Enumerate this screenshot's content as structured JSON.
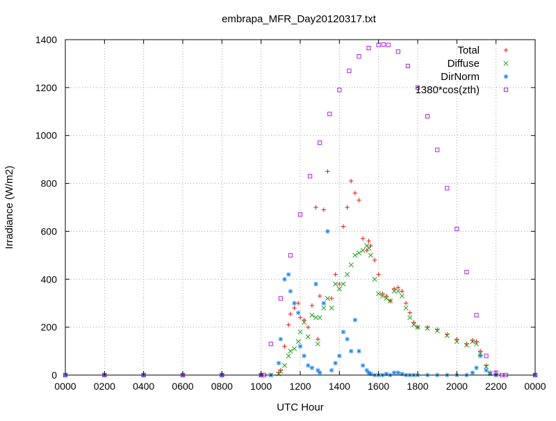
{
  "chart_data": {
    "type": "scatter",
    "title": "embrapa_MFR_Day20120317.txt",
    "xlabel": "UTC Hour",
    "ylabel": "Irradiance (W/m2)",
    "xlim": [
      0,
      24
    ],
    "ylim": [
      0,
      1400
    ],
    "grid": true,
    "legend_position": "top-right",
    "x_tick_values": [
      0,
      2,
      4,
      6,
      8,
      10,
      12,
      14,
      16,
      18,
      20,
      22,
      24
    ],
    "x_tick_labels": [
      "0000",
      "0200",
      "0400",
      "0600",
      "0800",
      "1000",
      "1200",
      "1400",
      "1600",
      "1800",
      "2000",
      "2200",
      "0000"
    ],
    "y_ticks": [
      0,
      200,
      400,
      600,
      800,
      1000,
      1200,
      1400
    ],
    "series": [
      {
        "name": "Total",
        "marker": "+",
        "color": "#e8120c",
        "x": [
          0,
          2,
          4,
          6,
          8,
          10,
          10.5,
          10.9,
          11.0,
          11.2,
          11.4,
          11.5,
          11.7,
          11.9,
          12.0,
          12.2,
          12.4,
          12.6,
          12.8,
          12.9,
          13.0,
          13.2,
          13.4,
          13.6,
          13.8,
          14.0,
          14.2,
          14.4,
          14.6,
          14.8,
          15.0,
          15.2,
          15.4,
          15.5,
          15.6,
          15.8,
          16.0,
          16.2,
          16.4,
          16.6,
          16.8,
          17.0,
          17.2,
          17.4,
          17.6,
          17.8,
          18.0,
          18.5,
          19.0,
          19.5,
          20.0,
          20.5,
          20.8,
          21.0,
          21.2,
          21.5,
          21.7,
          22.0,
          24
        ],
        "y": [
          0,
          0,
          0,
          0,
          0,
          0,
          0,
          10,
          20,
          120,
          210,
          255,
          280,
          300,
          240,
          230,
          200,
          290,
          700,
          150,
          330,
          690,
          850,
          320,
          420,
          380,
          620,
          700,
          810,
          760,
          730,
          570,
          520,
          560,
          540,
          480,
          420,
          340,
          330,
          310,
          360,
          365,
          350,
          300,
          260,
          220,
          200,
          200,
          190,
          170,
          150,
          130,
          145,
          140,
          100,
          40,
          10,
          0,
          0
        ]
      },
      {
        "name": "Diffuse",
        "marker": "x",
        "color": "#1a9f1a",
        "x": [
          0,
          2,
          4,
          6,
          8,
          10,
          10.5,
          10.9,
          11.0,
          11.2,
          11.4,
          11.5,
          11.7,
          11.9,
          12.0,
          12.2,
          12.4,
          12.6,
          12.8,
          12.9,
          13.0,
          13.2,
          13.4,
          13.6,
          13.8,
          14.0,
          14.2,
          14.4,
          14.6,
          14.8,
          15.0,
          15.2,
          15.4,
          15.5,
          15.6,
          15.8,
          16.0,
          16.2,
          16.4,
          16.6,
          16.8,
          17.0,
          17.2,
          17.4,
          17.6,
          17.8,
          18.0,
          18.5,
          19.0,
          19.5,
          20.0,
          20.5,
          20.8,
          21.0,
          21.2,
          21.5,
          21.7,
          22.0,
          24
        ],
        "y": [
          0,
          0,
          0,
          0,
          0,
          0,
          0,
          5,
          15,
          40,
          80,
          100,
          110,
          140,
          180,
          220,
          160,
          250,
          240,
          130,
          240,
          280,
          320,
          280,
          380,
          360,
          380,
          420,
          460,
          500,
          510,
          520,
          540,
          530,
          500,
          400,
          340,
          330,
          320,
          310,
          350,
          350,
          330,
          280,
          240,
          210,
          200,
          195,
          185,
          165,
          140,
          125,
          140,
          130,
          90,
          35,
          8,
          0,
          0
        ]
      },
      {
        "name": "DirNorm",
        "marker": "*",
        "color": "#1f87e8",
        "x": [
          0,
          2,
          4,
          6,
          8,
          10,
          10.5,
          10.9,
          11.0,
          11.2,
          11.4,
          11.5,
          11.7,
          11.9,
          12.0,
          12.2,
          12.4,
          12.6,
          12.8,
          12.9,
          13.0,
          13.2,
          13.4,
          13.6,
          13.8,
          14.0,
          14.2,
          14.4,
          14.6,
          14.8,
          15.0,
          15.2,
          15.4,
          15.5,
          15.6,
          15.8,
          16.0,
          16.2,
          16.4,
          16.6,
          16.8,
          17.0,
          17.2,
          17.4,
          17.6,
          17.8,
          18.0,
          18.5,
          19.0,
          19.5,
          20.0,
          20.5,
          20.8,
          21.0,
          21.2,
          21.5,
          21.7,
          22.0,
          24
        ],
        "y": [
          0,
          0,
          0,
          0,
          0,
          0,
          0,
          50,
          150,
          400,
          420,
          350,
          300,
          260,
          120,
          80,
          40,
          30,
          380,
          20,
          10,
          300,
          600,
          20,
          50,
          80,
          180,
          150,
          100,
          230,
          100,
          40,
          20,
          10,
          5,
          0,
          0,
          0,
          5,
          0,
          10,
          10,
          5,
          0,
          0,
          0,
          0,
          0,
          0,
          0,
          0,
          0,
          10,
          30,
          80,
          20,
          5,
          0,
          0
        ]
      },
      {
        "name": "1380*cos(zth)",
        "marker": "square",
        "color": "#b01ee8",
        "x": [
          0,
          2,
          4,
          6,
          8,
          10,
          10.15,
          10.5,
          11.0,
          11.5,
          12.0,
          12.5,
          13.0,
          13.5,
          14.0,
          14.5,
          15.0,
          15.5,
          16.0,
          16.25,
          16.5,
          17.0,
          17.5,
          18.0,
          18.5,
          19.0,
          19.5,
          20.0,
          20.5,
          21.0,
          21.5,
          22.0,
          22.3,
          22.5,
          24
        ],
        "y": [
          0,
          0,
          0,
          0,
          0,
          0,
          0,
          130,
          320,
          500,
          670,
          830,
          970,
          1090,
          1190,
          1270,
          1330,
          1365,
          1378,
          1380,
          1378,
          1350,
          1290,
          1200,
          1080,
          940,
          780,
          610,
          430,
          250,
          80,
          10,
          0,
          0,
          0
        ]
      }
    ]
  }
}
